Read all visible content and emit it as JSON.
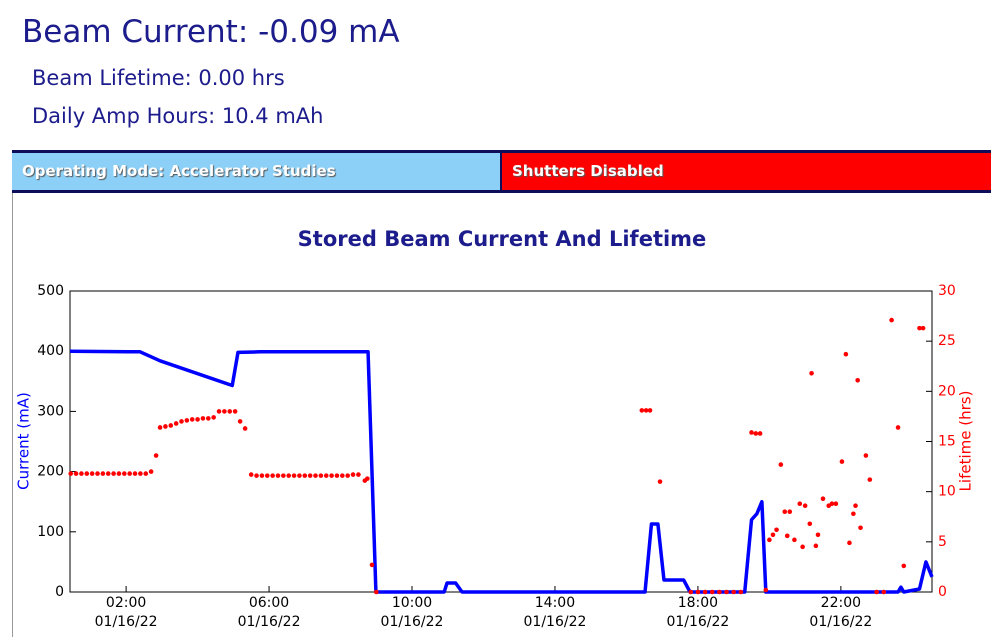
{
  "header": {
    "beam_current": "Beam Current: -0.09 mA",
    "beam_lifetime": "Beam Lifetime: 0.00 hrs",
    "daily_amp_hours": "Daily Amp Hours: 10.4 mAh"
  },
  "status": {
    "mode": "Operating Mode: Accelerator Studies",
    "shutters": "Shutters Disabled"
  },
  "chart_data": {
    "type": "line",
    "title": "Stored Beam Current And Lifetime",
    "ylabel": "Current (mA)",
    "y2label": "Lifetime (hrs)",
    "xlim": [
      0.43,
      24.55
    ],
    "xticks": [
      {
        "value": 2,
        "label": "02:00\n01/16/22"
      },
      {
        "value": 6,
        "label": "06:00\n01/16/22"
      },
      {
        "value": 10,
        "label": "10:00\n01/16/22"
      },
      {
        "value": 14,
        "label": "14:00\n01/16/22"
      },
      {
        "value": 18,
        "label": "18:00\n01/16/22"
      },
      {
        "value": 22,
        "label": "22:00\n01/16/22"
      }
    ],
    "ylim": [
      0,
      500
    ],
    "yticks": [
      0,
      100,
      200,
      300,
      400,
      500
    ],
    "y2lim": [
      0,
      30
    ],
    "y2ticks": [
      0,
      5,
      10,
      15,
      20,
      25,
      30
    ],
    "series": [
      {
        "type": "line",
        "color": "#0000ff",
        "x": [
          0.43,
          2.39,
          2.95,
          4.97,
          5.13,
          5.75,
          8.77,
          8.99,
          10.9,
          10.98,
          11.22,
          11.4,
          16.52,
          16.7,
          16.88,
          17.05,
          17.6,
          17.78,
          19.31,
          19.5,
          19.65,
          19.79,
          19.9,
          23.6,
          23.68,
          23.76,
          24.2,
          24.38,
          24.55
        ],
        "values": [
          400,
          399,
          384,
          343,
          398,
          399,
          399,
          0,
          0,
          15,
          15,
          0,
          0,
          113,
          113,
          20,
          20,
          0,
          0,
          120,
          130,
          150,
          0,
          0,
          8,
          0,
          5,
          50,
          25
        ]
      },
      {
        "type": "scatter",
        "axis": "y2",
        "color": "#ff0000",
        "x": [
          0.45,
          0.6,
          0.75,
          0.9,
          1.05,
          1.2,
          1.35,
          1.5,
          1.65,
          1.8,
          1.95,
          2.1,
          2.25,
          2.4,
          2.55,
          2.7,
          2.84,
          2.95,
          3.1,
          3.25,
          3.4,
          3.55,
          3.7,
          3.85,
          4.0,
          4.15,
          4.3,
          4.45,
          4.6,
          4.75,
          4.9,
          5.05,
          5.19,
          5.33,
          5.5,
          5.65,
          5.8,
          5.95,
          6.1,
          6.25,
          6.4,
          6.55,
          6.7,
          6.85,
          7.0,
          7.15,
          7.3,
          7.45,
          7.6,
          7.75,
          7.9,
          8.05,
          8.2,
          8.35,
          8.5,
          8.68,
          8.75,
          8.88,
          9.0,
          16.43,
          16.55,
          16.66,
          16.94,
          17.8,
          18.0,
          18.2,
          18.4,
          18.6,
          18.8,
          19.0,
          19.2,
          19.5,
          19.62,
          19.74,
          19.9,
          20.0,
          20.1,
          20.2,
          20.32,
          20.43,
          20.5,
          20.57,
          20.7,
          20.85,
          20.93,
          21.0,
          21.13,
          21.18,
          21.3,
          21.36,
          21.5,
          21.66,
          21.75,
          21.86,
          22.03,
          22.14,
          22.24,
          22.35,
          22.41,
          22.47,
          22.55,
          22.7,
          22.81,
          23.0,
          23.2,
          23.42,
          23.6,
          23.76,
          24.2,
          24.3
        ],
        "values": [
          11.8,
          11.8,
          11.8,
          11.8,
          11.8,
          11.8,
          11.8,
          11.8,
          11.8,
          11.8,
          11.8,
          11.8,
          11.8,
          11.8,
          11.8,
          12.0,
          13.6,
          16.4,
          16.5,
          16.6,
          16.8,
          17.0,
          17.1,
          17.2,
          17.2,
          17.3,
          17.3,
          17.4,
          18.0,
          18.0,
          18.0,
          18.0,
          17.0,
          16.3,
          11.7,
          11.6,
          11.6,
          11.6,
          11.6,
          11.6,
          11.6,
          11.6,
          11.6,
          11.6,
          11.6,
          11.6,
          11.6,
          11.6,
          11.6,
          11.6,
          11.6,
          11.6,
          11.6,
          11.7,
          11.7,
          11.1,
          11.3,
          2.7,
          0,
          18.1,
          18.1,
          18.1,
          11.0,
          0,
          0,
          0,
          0,
          0,
          0,
          0,
          0,
          15.9,
          15.8,
          15.8,
          0.2,
          5.2,
          5.7,
          6.2,
          12.7,
          8,
          5.6,
          8,
          5.2,
          8.8,
          4.5,
          8.6,
          6.8,
          21.8,
          4.6,
          5.7,
          9.3,
          8.6,
          8.8,
          8.8,
          13.0,
          23.7,
          4.9,
          7.8,
          8.6,
          21.1,
          6.4,
          13.6,
          11.2,
          0,
          0,
          27.1,
          16.4,
          2.6,
          26.3,
          26.3
        ]
      }
    ]
  }
}
